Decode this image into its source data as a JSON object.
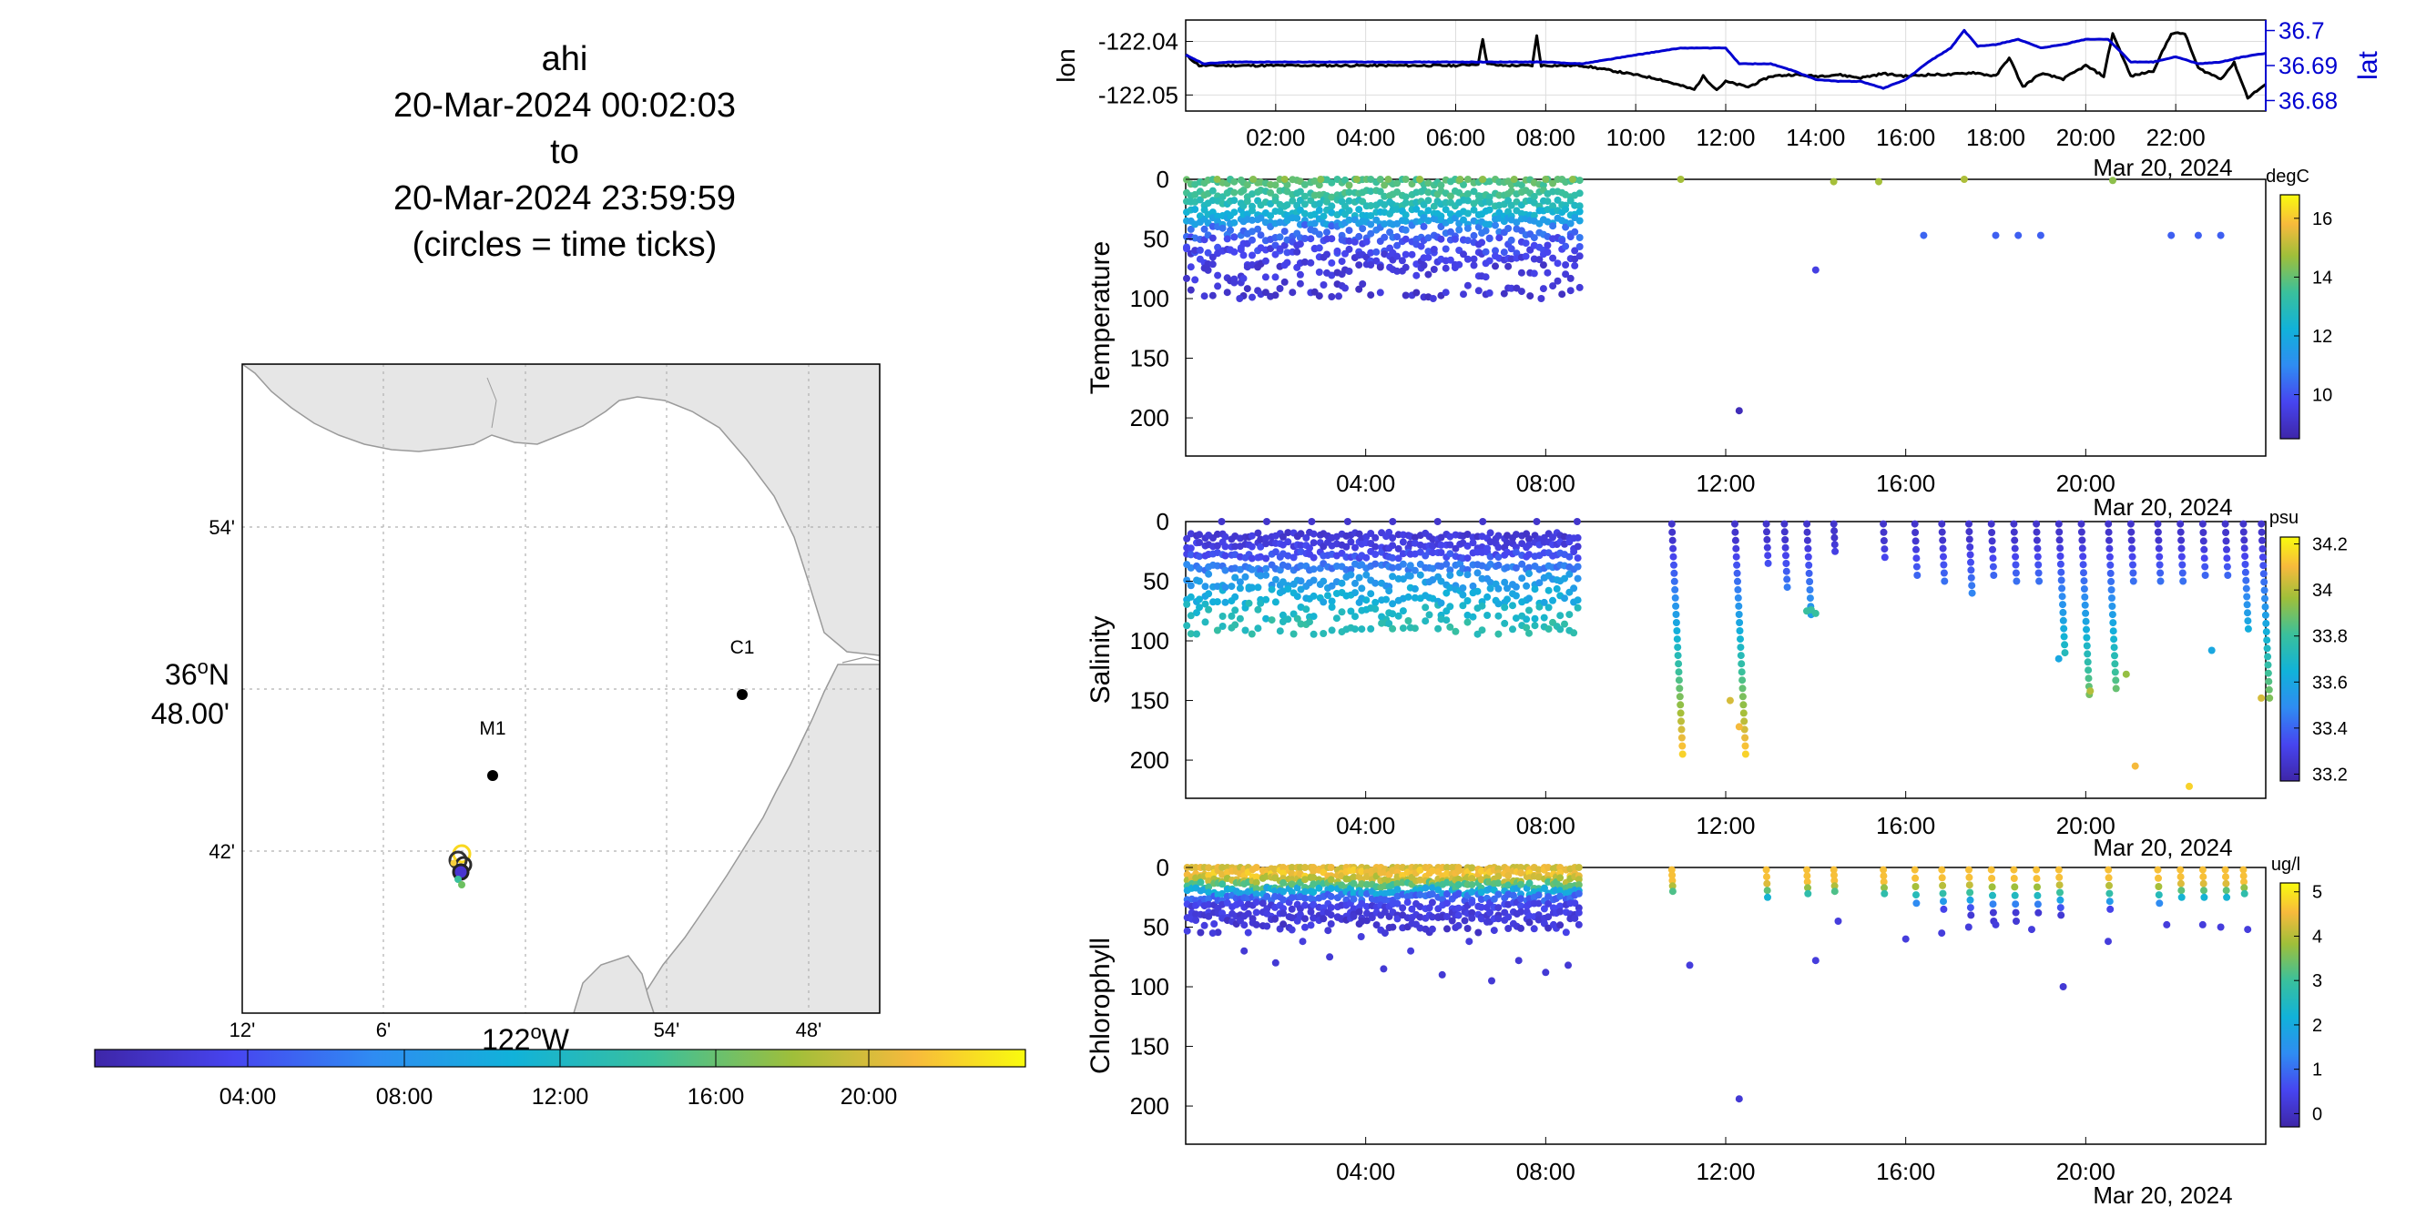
{
  "title": {
    "lines": [
      "ahi",
      "20-Mar-2024 00:02:03",
      "to",
      "20-Mar-2024 23:59:59",
      "(circles = time ticks)"
    ]
  },
  "map": {
    "lat_ticks": [
      "54'",
      "48.00'",
      "42'"
    ],
    "lat_deg_label": "36",
    "lat_deg_suffix": "N",
    "lon_ticks": [
      "12'",
      "6'",
      "54'",
      "48'"
    ],
    "lon_deg_label": "122",
    "lon_deg_suffix": "W",
    "stations": [
      {
        "name": "C1"
      },
      {
        "name": "M1"
      }
    ],
    "time_colorbar_ticks": [
      "04:00",
      "08:00",
      "12:00",
      "16:00",
      "20:00"
    ],
    "colors": {
      "land": "#e6e6e6",
      "coast": "#9a9a9a",
      "grid": "#b0b0b0"
    }
  },
  "chart_data": [
    {
      "type": "line",
      "title": "",
      "ylabel": "lon",
      "ylabel_right": "lat",
      "xlim": [
        0,
        24
      ],
      "ylim": [
        -122.053,
        -122.036
      ],
      "ylim_right": [
        36.677,
        36.703
      ],
      "yticks": [
        "-122.04",
        "-122.05"
      ],
      "yticks_right": [
        "36.7",
        "36.69",
        "36.68"
      ],
      "xticks": [
        "02:00",
        "04:00",
        "06:00",
        "08:00",
        "10:00",
        "12:00",
        "14:00",
        "16:00",
        "18:00",
        "20:00",
        "22:00"
      ],
      "date_label": "Mar 20, 2024",
      "grid": true,
      "series": [
        {
          "name": "lon",
          "color": "#000000",
          "x": [
            0,
            0.3,
            1,
            2,
            3,
            4,
            5,
            6,
            6.5,
            6.6,
            6.7,
            7,
            7.7,
            7.8,
            7.9,
            8.5,
            8.8,
            9.5,
            10.5,
            11.3,
            11.5,
            11.8,
            12,
            12.5,
            13,
            13.5,
            14,
            14.5,
            15,
            15.5,
            16,
            16.5,
            17,
            17.5,
            18,
            18.3,
            18.6,
            19,
            19.5,
            20,
            20.4,
            20.6,
            21,
            21.5,
            21.9,
            22.2,
            22.5,
            23,
            23.3,
            23.6,
            24
          ],
          "y": [
            -122.0425,
            -122.0445,
            -122.0445,
            -122.0445,
            -122.0445,
            -122.0445,
            -122.0445,
            -122.0445,
            -122.0442,
            -122.0395,
            -122.0442,
            -122.0445,
            -122.0445,
            -122.039,
            -122.0445,
            -122.0445,
            -122.0445,
            -122.0455,
            -122.047,
            -122.049,
            -122.0465,
            -122.049,
            -122.0475,
            -122.0485,
            -122.0465,
            -122.0462,
            -122.0465,
            -122.0462,
            -122.0468,
            -122.046,
            -122.0465,
            -122.0462,
            -122.0462,
            -122.0458,
            -122.0465,
            -122.043,
            -122.0485,
            -122.046,
            -122.047,
            -122.0445,
            -122.0465,
            -122.0385,
            -122.0465,
            -122.0455,
            -122.0385,
            -122.0385,
            -122.045,
            -122.047,
            -122.044,
            -122.0505,
            -122.048
          ]
        },
        {
          "name": "lat",
          "color": "#0000d0",
          "x": [
            0,
            0.4,
            1,
            2,
            3,
            4,
            5,
            6,
            7,
            8,
            8.8,
            10,
            11,
            12,
            12.3,
            13,
            13.5,
            14,
            14.5,
            15,
            15.5,
            16,
            16.5,
            17,
            17.3,
            17.6,
            18,
            18.5,
            19,
            19.5,
            20,
            20.5,
            21,
            21.5,
            22,
            22.5,
            23,
            23.5,
            24
          ],
          "y": [
            36.693,
            36.6905,
            36.691,
            36.691,
            36.691,
            36.691,
            36.691,
            36.691,
            36.691,
            36.691,
            36.6905,
            36.693,
            36.695,
            36.695,
            36.6905,
            36.6905,
            36.6885,
            36.686,
            36.6855,
            36.6855,
            36.6835,
            36.686,
            36.691,
            36.695,
            36.7,
            36.6955,
            36.696,
            36.6975,
            36.695,
            36.696,
            36.6975,
            36.6975,
            36.691,
            36.691,
            36.6925,
            36.6905,
            36.691,
            36.6925,
            36.6935
          ]
        }
      ]
    },
    {
      "type": "scatter",
      "title": "",
      "ylabel": "Temperature",
      "xlim": [
        0,
        24
      ],
      "ylim": [
        232,
        0
      ],
      "yticks": [
        "0",
        "50",
        "100",
        "150",
        "200"
      ],
      "xticks": [
        "04:00",
        "08:00",
        "12:00",
        "16:00",
        "20:00"
      ],
      "date_label": "Mar 20, 2024",
      "colorbar": {
        "units": "degC",
        "range": [
          8.5,
          16.8
        ],
        "ticks": [
          "16",
          "14",
          "12",
          "10"
        ]
      },
      "dense_profiles": {
        "x_range": [
          0,
          8.8
        ],
        "depths": [
          [
            2,
            13.8
          ],
          [
            12,
            13.5
          ],
          [
            20,
            13
          ],
          [
            28,
            12.4
          ],
          [
            35,
            11.6
          ],
          [
            45,
            10.5
          ],
          [
            55,
            9.8
          ],
          [
            65,
            9.5
          ],
          [
            78,
            9.3
          ],
          [
            92,
            9.2
          ]
        ]
      },
      "points": {
        "x": [
          0.7,
          1.5,
          2.2,
          3,
          3.8,
          4.5,
          5.2,
          6.1,
          6.6,
          7.3,
          8,
          8.6,
          1.2,
          3.4,
          5.5,
          7.9,
          11.0,
          14.4,
          15.4,
          17.3,
          20.6,
          16.4,
          18.0,
          18.5,
          19.0,
          21.9,
          22.5,
          23.0,
          14.0,
          12.3
        ],
        "y": [
          0,
          0,
          0,
          0,
          0,
          0,
          0,
          0,
          0,
          0,
          0,
          0,
          100,
          98,
          100,
          100,
          0,
          2,
          2,
          0,
          1,
          47,
          47,
          47,
          47,
          47,
          47,
          47,
          76,
          194
        ],
        "v": [
          14.5,
          14.4,
          14.6,
          14.4,
          14.5,
          14.3,
          14.6,
          14.4,
          14.5,
          14.4,
          14.3,
          14.5,
          9.4,
          9.3,
          9.4,
          9.3,
          14.8,
          14.8,
          14.8,
          14.9,
          14.5,
          10.3,
          10.2,
          10.2,
          10.2,
          10.2,
          10.2,
          10.2,
          9.5,
          8.8
        ]
      }
    },
    {
      "type": "scatter",
      "title": "",
      "ylabel": "Salinity",
      "xlim": [
        0,
        24
      ],
      "ylim": [
        232,
        0
      ],
      "yticks": [
        "0",
        "50",
        "100",
        "150",
        "200"
      ],
      "xticks": [
        "04:00",
        "08:00",
        "12:00",
        "16:00",
        "20:00"
      ],
      "date_label": "Mar 20, 2024",
      "colorbar": {
        "units": "psu",
        "range": [
          33.17,
          34.23
        ],
        "ticks": [
          "34.2",
          "34",
          "33.8",
          "33.6",
          "33.4",
          "33.2"
        ]
      },
      "dense_profiles": {
        "x_range": [
          0,
          8.8
        ],
        "depths": [
          [
            12,
            33.27
          ],
          [
            20,
            33.3
          ],
          [
            28,
            33.35
          ],
          [
            38,
            33.45
          ],
          [
            50,
            33.55
          ],
          [
            62,
            33.62
          ],
          [
            75,
            33.7
          ],
          [
            88,
            33.75
          ]
        ]
      },
      "casts": [
        {
          "x": 10.8,
          "bottom": 195
        },
        {
          "x": 12.2,
          "bottom": 195
        },
        {
          "x": 12.9,
          "bottom": 35
        },
        {
          "x": 13.3,
          "bottom": 55
        },
        {
          "x": 13.8,
          "bottom": 78
        },
        {
          "x": 14.4,
          "bottom": 25
        },
        {
          "x": 15.5,
          "bottom": 30
        },
        {
          "x": 16.2,
          "bottom": 45
        },
        {
          "x": 16.8,
          "bottom": 50
        },
        {
          "x": 17.4,
          "bottom": 60
        },
        {
          "x": 17.9,
          "bottom": 45
        },
        {
          "x": 18.4,
          "bottom": 50
        },
        {
          "x": 18.9,
          "bottom": 50
        },
        {
          "x": 19.4,
          "bottom": 110
        },
        {
          "x": 19.9,
          "bottom": 145
        },
        {
          "x": 20.5,
          "bottom": 140
        },
        {
          "x": 21.0,
          "bottom": 50
        },
        {
          "x": 21.6,
          "bottom": 50
        },
        {
          "x": 22.1,
          "bottom": 50
        },
        {
          "x": 22.6,
          "bottom": 45
        },
        {
          "x": 23.1,
          "bottom": 45
        },
        {
          "x": 23.5,
          "bottom": 90
        },
        {
          "x": 23.9,
          "bottom": 148
        }
      ],
      "points": {
        "x": [
          0.8,
          1.8,
          2.8,
          3.6,
          4.6,
          5.6,
          6.6,
          7.8,
          8.7,
          13.9,
          14.0,
          13.8,
          12.1,
          12.3,
          19.4,
          20.1,
          20.9,
          21.1,
          22.3,
          22.8,
          23.9
        ],
        "y": [
          0,
          0,
          0,
          0,
          0,
          0,
          0,
          0,
          0,
          74,
          77,
          75,
          150,
          172,
          115,
          142,
          128,
          205,
          222,
          108,
          148
        ],
        "v": [
          33.25,
          33.25,
          33.25,
          33.25,
          33.25,
          33.25,
          33.25,
          33.25,
          33.25,
          33.8,
          33.8,
          33.8,
          34.05,
          34.1,
          33.6,
          34.0,
          33.95,
          34.1,
          34.15,
          33.6,
          34.05
        ]
      }
    },
    {
      "type": "scatter",
      "title": "",
      "ylabel": "Chlorophyll",
      "xlim": [
        0,
        24
      ],
      "ylim": [
        232,
        0
      ],
      "yticks": [
        "0",
        "50",
        "100",
        "150",
        "200"
      ],
      "xticks": [
        "04:00",
        "08:00",
        "12:00",
        "16:00",
        "20:00"
      ],
      "date_label": "Mar 20, 2024",
      "colorbar": {
        "units": "ug/l",
        "range": [
          -0.3,
          5.2
        ],
        "ticks": [
          "5",
          "4",
          "3",
          "2",
          "1",
          "0"
        ]
      },
      "dense_profiles": {
        "x_range": [
          0,
          8.8
        ],
        "depths": [
          [
            0,
            4.3
          ],
          [
            5,
            4.6
          ],
          [
            10,
            4.1
          ],
          [
            15,
            3.2
          ],
          [
            20,
            2.0
          ],
          [
            25,
            0.9
          ],
          [
            32,
            0.4
          ],
          [
            40,
            0.3
          ],
          [
            48,
            0.2
          ]
        ]
      },
      "casts": [
        {
          "x": 10.8,
          "bottom": 20
        },
        {
          "x": 12.9,
          "bottom": 25
        },
        {
          "x": 13.8,
          "bottom": 22
        },
        {
          "x": 14.4,
          "bottom": 20
        },
        {
          "x": 15.5,
          "bottom": 22
        },
        {
          "x": 16.2,
          "bottom": 30
        },
        {
          "x": 16.8,
          "bottom": 35
        },
        {
          "x": 17.4,
          "bottom": 40
        },
        {
          "x": 17.9,
          "bottom": 45
        },
        {
          "x": 18.4,
          "bottom": 45
        },
        {
          "x": 18.9,
          "bottom": 38
        },
        {
          "x": 19.4,
          "bottom": 40
        },
        {
          "x": 20.5,
          "bottom": 35
        },
        {
          "x": 21.6,
          "bottom": 30
        },
        {
          "x": 22.1,
          "bottom": 25
        },
        {
          "x": 22.6,
          "bottom": 25
        },
        {
          "x": 23.1,
          "bottom": 25
        },
        {
          "x": 23.5,
          "bottom": 22
        }
      ],
      "points": {
        "x": [
          0.6,
          1.3,
          2.0,
          2.6,
          3.2,
          3.9,
          4.4,
          5.0,
          5.7,
          6.3,
          6.8,
          7.4,
          8.0,
          8.5,
          11.2,
          14.0,
          14.5,
          16.0,
          16.8,
          17.4,
          18.0,
          18.8,
          19.5,
          20.5,
          21.8,
          22.6,
          23.0,
          23.6,
          12.3
        ],
        "y": [
          55,
          70,
          80,
          62,
          75,
          58,
          85,
          70,
          90,
          62,
          95,
          78,
          88,
          82,
          82,
          78,
          45,
          60,
          55,
          50,
          48,
          52,
          100,
          62,
          48,
          48,
          50,
          52,
          194
        ],
        "v": [
          0.3,
          0.2,
          0.2,
          0.3,
          0.2,
          0.3,
          0.2,
          0.3,
          0.2,
          0.3,
          0.2,
          0.2,
          0.2,
          0.2,
          0.3,
          0.3,
          0.3,
          0.3,
          0.3,
          0.3,
          0.3,
          0.3,
          0.2,
          0.3,
          0.3,
          0.3,
          0.3,
          0.3,
          0.2
        ]
      }
    }
  ]
}
